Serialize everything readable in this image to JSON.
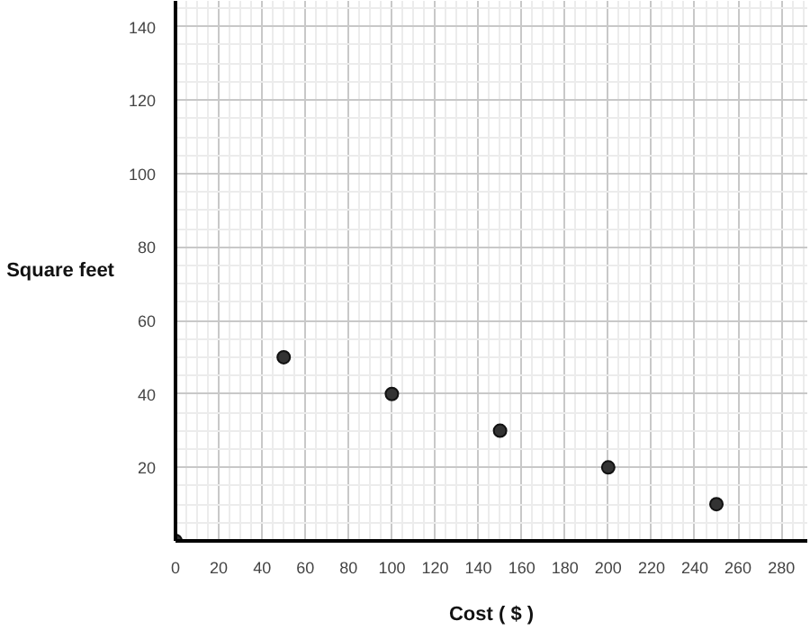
{
  "chart_data": {
    "type": "scatter",
    "xlabel": "Cost ( $ )",
    "ylabel": "Square feet",
    "x": [
      0,
      50,
      100,
      150,
      200,
      250
    ],
    "series": [
      {
        "color": "#333333",
        "values": [
          0,
          50,
          40,
          30,
          20,
          10
        ]
      }
    ],
    "xlim": [
      0,
      292
    ],
    "ylim": [
      0,
      147
    ],
    "xticks": [
      0,
      20,
      40,
      60,
      80,
      100,
      120,
      140,
      160,
      180,
      200,
      220,
      240,
      260,
      280
    ],
    "yticks": [
      20,
      40,
      60,
      80,
      100,
      120,
      140
    ],
    "grid": true,
    "marker": "circle"
  }
}
